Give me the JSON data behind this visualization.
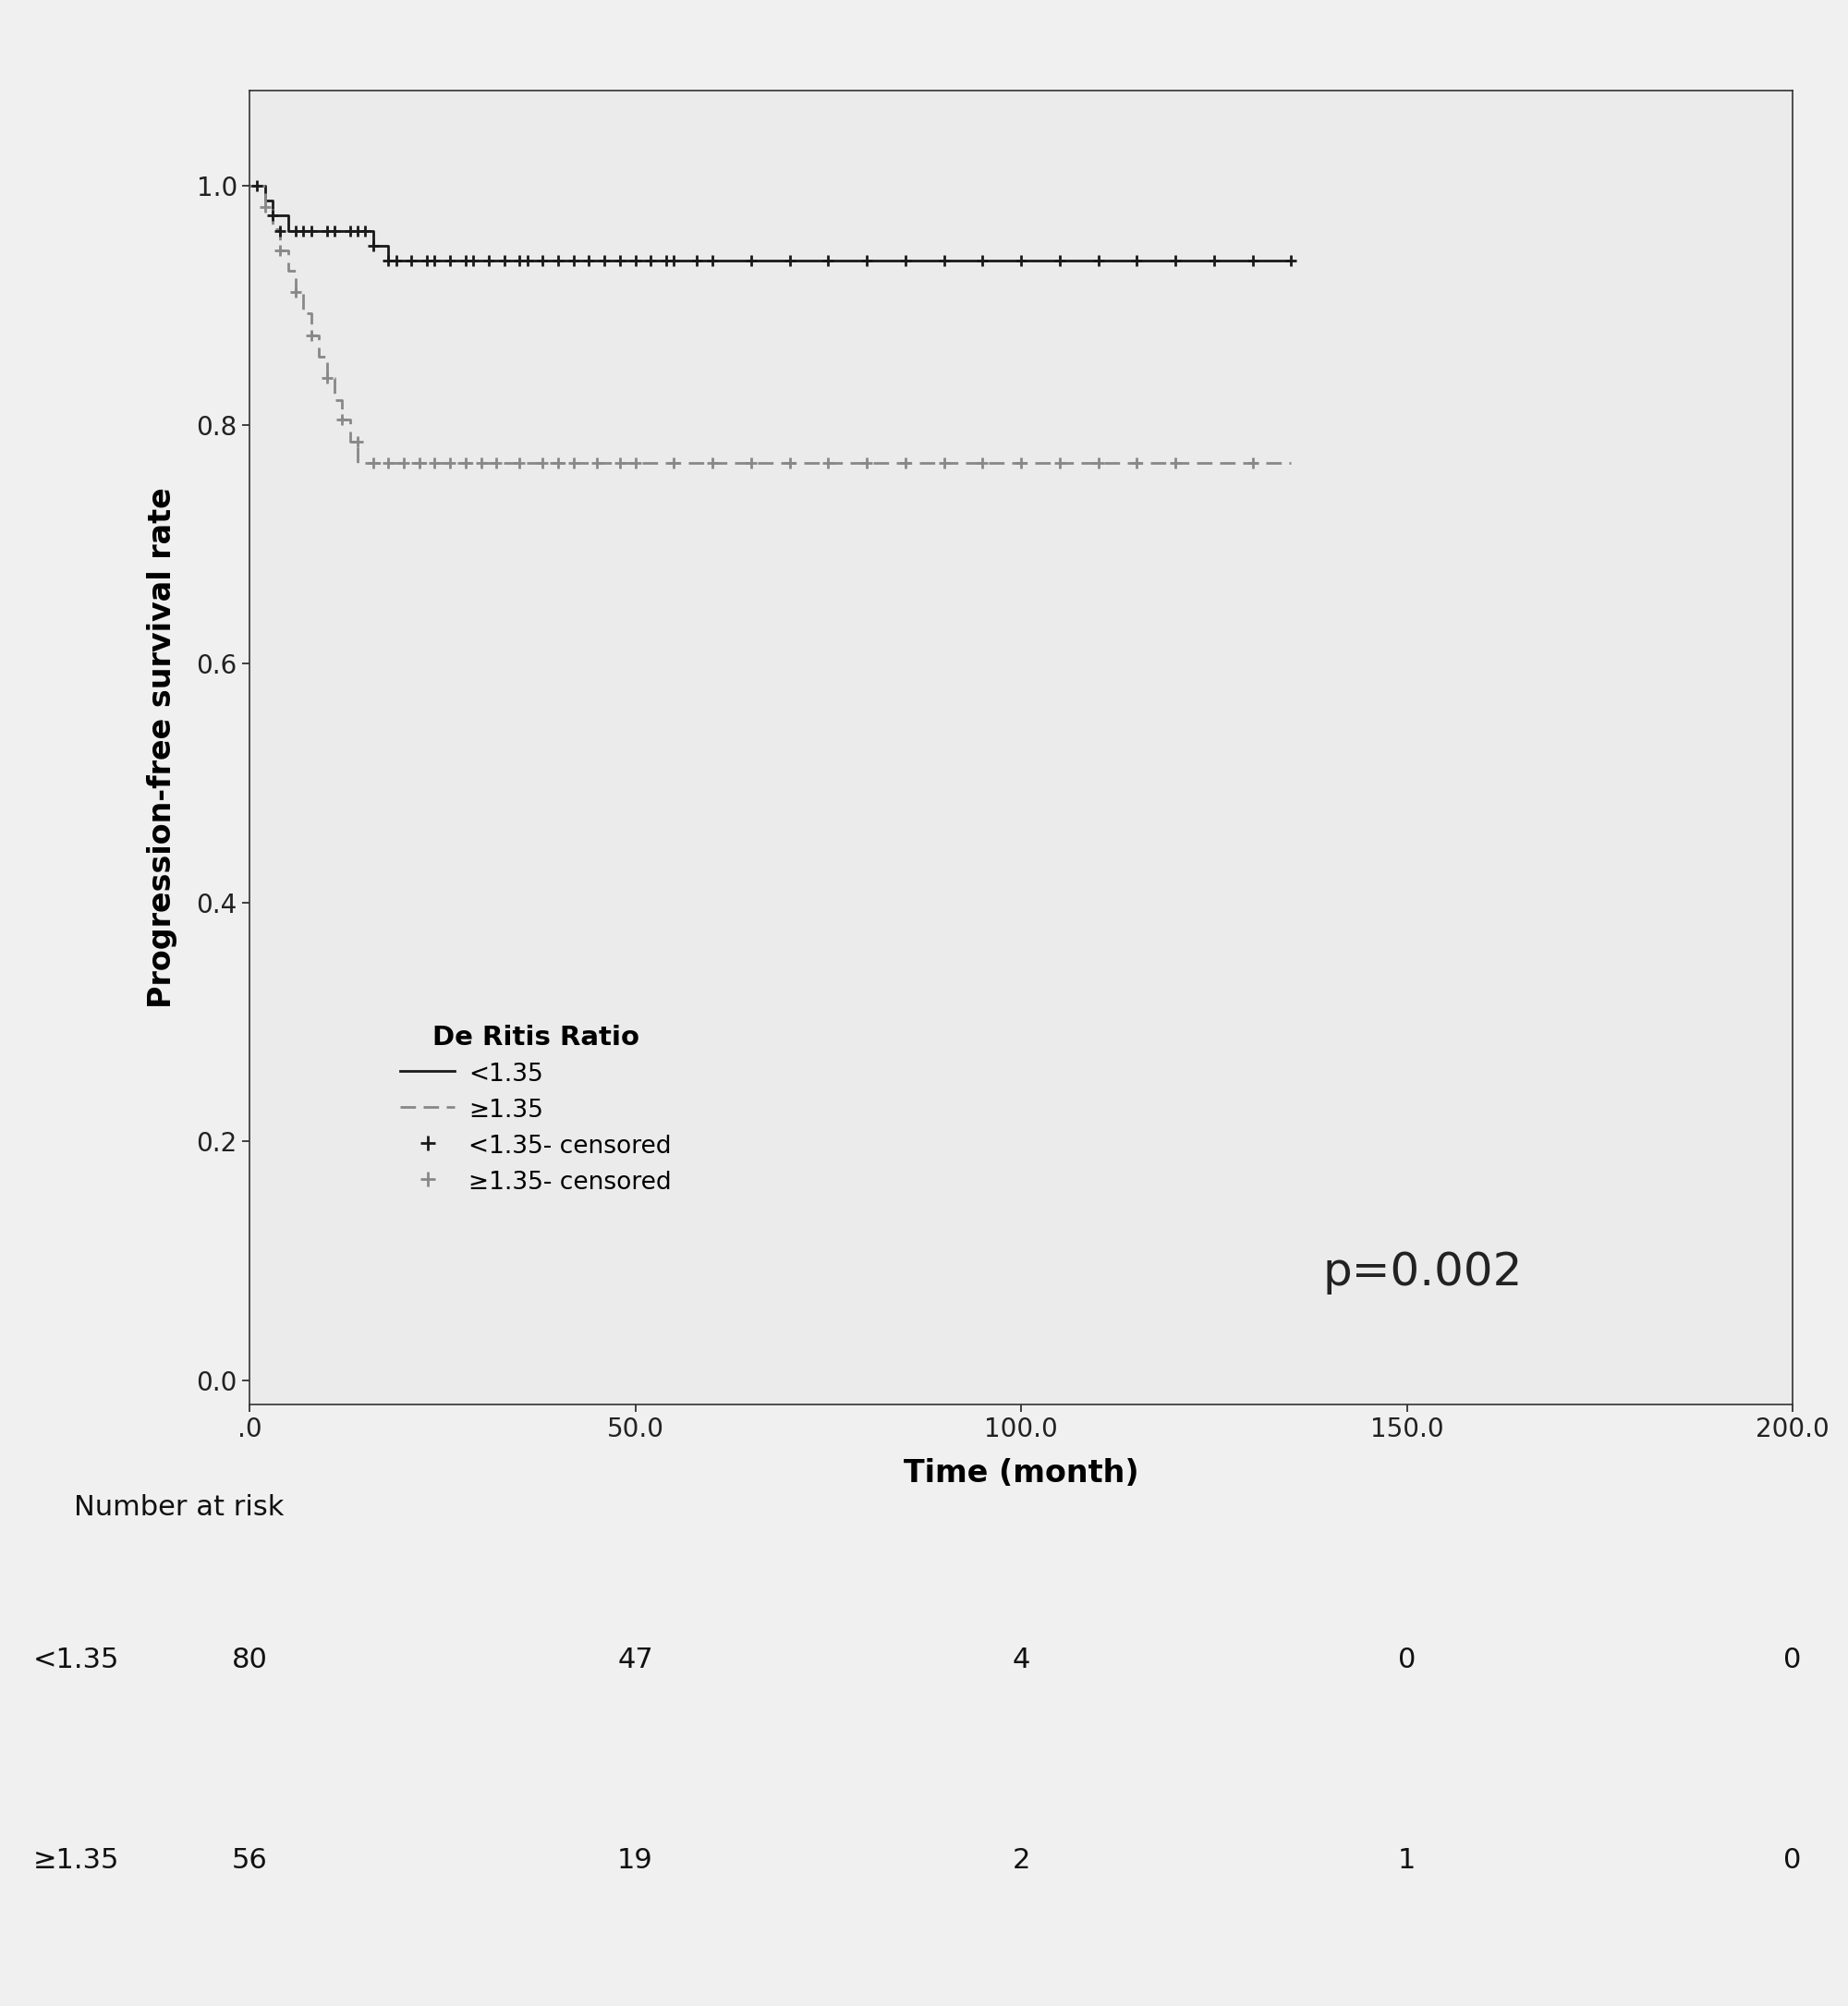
{
  "title": "",
  "xlabel": "Time (month)",
  "ylabel": "Progression-free survival rate",
  "xlim": [
    0,
    200
  ],
  "ylim": [
    -0.02,
    1.08
  ],
  "xticks": [
    0,
    50,
    100,
    150,
    200
  ],
  "xtick_labels": [
    ".0",
    "50.0",
    "100.0",
    "150.0",
    "200.0"
  ],
  "yticks": [
    0.0,
    0.2,
    0.4,
    0.6,
    0.8,
    1.0
  ],
  "ytick_labels": [
    "0.0",
    "0.2",
    "0.4",
    "0.6",
    "0.8",
    "1.0"
  ],
  "fig_bg_color": "#f0f0f0",
  "plot_bg_color": "#ebebeb",
  "group1_color": "#1a1a1a",
  "group2_color": "#888888",
  "p_value_text": "p=0.002",
  "legend_title": "De Ritis Ratio",
  "legend_items": [
    "<1.35",
    "≥1.35",
    "<1.35- censored",
    "≥1.35- censored"
  ],
  "number_at_risk_label": "Number at risk",
  "risk_rows": [
    {
      "label": "<1.35",
      "values": [
        80,
        47,
        4,
        0,
        0
      ]
    },
    {
      "label": "≥1.35",
      "values": [
        56,
        19,
        2,
        1,
        0
      ]
    }
  ],
  "risk_times": [
    0,
    50,
    100,
    150,
    200
  ],
  "group1_step_x": [
    0,
    1,
    2,
    3,
    5,
    7,
    9,
    10,
    12,
    16,
    17,
    18,
    20,
    22,
    25,
    27,
    30,
    32,
    35,
    37,
    40,
    43,
    46,
    48,
    50,
    52,
    55,
    57,
    60,
    62,
    65,
    67,
    70,
    72,
    75,
    78,
    80,
    85,
    88,
    90,
    95,
    100,
    105,
    110,
    115,
    120,
    125,
    130,
    135
  ],
  "group1_step_y": [
    1.0,
    1.0,
    0.9875,
    0.975,
    0.9625,
    0.9625,
    0.9625,
    0.9625,
    0.9625,
    0.95,
    0.95,
    0.9375,
    0.9375,
    0.9375,
    0.9375,
    0.9375,
    0.9375,
    0.9375,
    0.9375,
    0.9375,
    0.9375,
    0.9375,
    0.9375,
    0.9375,
    0.9375,
    0.9375,
    0.9375,
    0.9375,
    0.9375,
    0.9375,
    0.9375,
    0.9375,
    0.9375,
    0.9375,
    0.9375,
    0.9375,
    0.9375,
    0.9375,
    0.9375,
    0.9375,
    0.9375,
    0.9375,
    0.9375,
    0.9375,
    0.9375,
    0.9375,
    0.9375,
    0.9375,
    0.9375
  ],
  "group2_step_x": [
    0,
    1,
    2,
    3,
    4,
    5,
    6,
    7,
    8,
    9,
    10,
    11,
    12,
    13,
    14,
    20,
    25,
    30,
    35,
    40,
    45,
    50,
    55,
    60,
    65,
    70,
    75,
    80,
    85,
    90,
    95,
    100,
    105,
    110,
    115,
    120,
    130,
    135
  ],
  "group2_step_y": [
    1.0,
    1.0,
    0.982,
    0.964,
    0.946,
    0.929,
    0.911,
    0.893,
    0.875,
    0.857,
    0.839,
    0.821,
    0.804,
    0.786,
    0.768,
    0.768,
    0.768,
    0.768,
    0.768,
    0.768,
    0.768,
    0.768,
    0.768,
    0.768,
    0.768,
    0.768,
    0.768,
    0.768,
    0.768,
    0.768,
    0.768,
    0.768,
    0.768,
    0.768,
    0.768,
    0.768,
    0.768,
    0.768
  ],
  "group1_censored_x": [
    1,
    3,
    4,
    6,
    7,
    8,
    10,
    11,
    13,
    14,
    15,
    16,
    18,
    19,
    21,
    23,
    24,
    26,
    28,
    29,
    31,
    33,
    35,
    36,
    38,
    40,
    42,
    44,
    46,
    48,
    50,
    52,
    54,
    55,
    58,
    60,
    65,
    70,
    75,
    80,
    85,
    90,
    95,
    100,
    105,
    110,
    115,
    120,
    125,
    130,
    135
  ],
  "group1_censored_y": [
    1.0,
    0.975,
    0.9625,
    0.9625,
    0.9625,
    0.9625,
    0.9625,
    0.9625,
    0.9625,
    0.9625,
    0.9625,
    0.95,
    0.9375,
    0.9375,
    0.9375,
    0.9375,
    0.9375,
    0.9375,
    0.9375,
    0.9375,
    0.9375,
    0.9375,
    0.9375,
    0.9375,
    0.9375,
    0.9375,
    0.9375,
    0.9375,
    0.9375,
    0.9375,
    0.9375,
    0.9375,
    0.9375,
    0.9375,
    0.9375,
    0.9375,
    0.9375,
    0.9375,
    0.9375,
    0.9375,
    0.9375,
    0.9375,
    0.9375,
    0.9375,
    0.9375,
    0.9375,
    0.9375,
    0.9375,
    0.9375,
    0.9375,
    0.9375
  ],
  "group2_censored_x": [
    2,
    4,
    6,
    8,
    10,
    12,
    14,
    16,
    18,
    20,
    22,
    24,
    26,
    28,
    30,
    32,
    35,
    38,
    40,
    42,
    45,
    48,
    50,
    55,
    60,
    65,
    70,
    75,
    80,
    85,
    90,
    95,
    100,
    105,
    110,
    115,
    120,
    130
  ],
  "group2_censored_y": [
    0.982,
    0.946,
    0.911,
    0.875,
    0.839,
    0.804,
    0.786,
    0.768,
    0.768,
    0.768,
    0.768,
    0.768,
    0.768,
    0.768,
    0.768,
    0.768,
    0.768,
    0.768,
    0.768,
    0.768,
    0.768,
    0.768,
    0.768,
    0.768,
    0.768,
    0.768,
    0.768,
    0.768,
    0.768,
    0.768,
    0.768,
    0.768,
    0.768,
    0.768,
    0.768,
    0.768,
    0.768,
    0.768
  ]
}
